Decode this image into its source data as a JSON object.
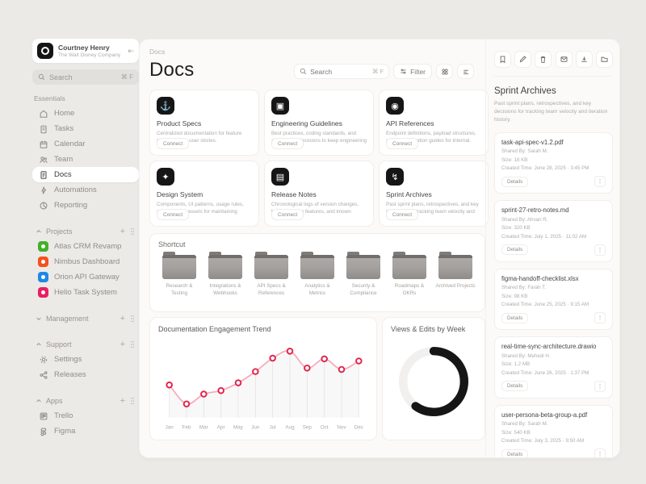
{
  "colors": {
    "page_bg": "#ECEAE7",
    "panel_bg": "#FBFAF8",
    "line_color": "#F5ABBA",
    "marker_color": "#E0244C",
    "donut_fill": "#161616",
    "donut_track": "#F1F0EE"
  },
  "sidebar": {
    "user": {
      "name": "Courtney Henry",
      "company": "The Walt Disney Company",
      "collapse_glyph": "⇤"
    },
    "search": {
      "label": "Search",
      "shortcut": "⌘ F"
    },
    "essentials": {
      "label": "Essentials",
      "items": [
        {
          "icon": "home-icon",
          "label": "Home"
        },
        {
          "icon": "tasks-icon",
          "label": "Tasks"
        },
        {
          "icon": "calendar-icon",
          "label": "Calendar"
        },
        {
          "icon": "team-icon",
          "label": "Team"
        },
        {
          "icon": "docs-icon",
          "label": "Docs",
          "active": true
        },
        {
          "icon": "automations-icon",
          "label": "Automations"
        },
        {
          "icon": "reporting-icon",
          "label": "Reporting"
        }
      ]
    },
    "projects": {
      "label": "Projects",
      "items": [
        {
          "label": "Atlas CRM Revamp",
          "color": "#43B02A"
        },
        {
          "label": "Nimbus Dashboard",
          "color": "#F4511E"
        },
        {
          "label": "Orion API Gateway",
          "color": "#1E88E5"
        },
        {
          "label": "Helio Task System",
          "color": "#E91E63"
        }
      ]
    },
    "management": {
      "label": "Management"
    },
    "support": {
      "label": "Support",
      "items": [
        {
          "icon": "settings-icon",
          "label": "Settings"
        },
        {
          "icon": "releases-icon",
          "label": "Releases"
        }
      ]
    },
    "apps": {
      "label": "Apps",
      "items": [
        {
          "icon": "trello-icon",
          "label": "Trello"
        },
        {
          "icon": "figma-icon",
          "label": "Figma"
        }
      ]
    }
  },
  "header": {
    "breadcrumb": "Docs",
    "title": "Docs",
    "search_placeholder": "Search",
    "search_shortcut": "⌘ F",
    "filter_label": "Filter"
  },
  "cards": [
    {
      "icon": "anchor-icon",
      "glyph": "⚓",
      "title": "Product Specs",
      "description": "Centralized documentation for feature requirements, user stories.",
      "button": "Connect"
    },
    {
      "icon": "framed-box-icon",
      "glyph": "▣",
      "title": "Engineering Guidelines",
      "description": "Best practices, coding standards, and architecture decisions to keep engineering consistent.",
      "button": "Connect"
    },
    {
      "icon": "target-icon",
      "glyph": "◉",
      "title": "API References",
      "description": "Endpoint definitions, payload structures, and authentication guides for internal.",
      "button": "Connect"
    },
    {
      "icon": "spark-icon",
      "glyph": "✦",
      "title": "Design System",
      "description": "Components, UI patterns, usage rules, and branding assets for maintaining visual.",
      "button": "Connect"
    },
    {
      "icon": "notes-icon",
      "glyph": "▤",
      "title": "Release Notes",
      "description": "Chronological logs of version changes, bug fixes, new features, and known issues.",
      "button": "Connect"
    },
    {
      "icon": "bolt-icon",
      "glyph": "↯",
      "title": "Sprint Archives",
      "description": "Past sprint plans, retrospectives, and key decisions for tracking team velocity and iteration history.",
      "button": "Connect"
    }
  ],
  "shortcut": {
    "title": "Shortcut",
    "folders": [
      "Research & Testing",
      "Integrations & Webhooks",
      "API Specs & References",
      "Analytics & Metrics",
      "Security & Compliance",
      "Roadmaps & OKRs",
      "Archived Projects"
    ]
  },
  "chart_data": [
    {
      "type": "line",
      "title": "Documentation Engagement Trend",
      "categories": [
        "Jan",
        "Feb",
        "Mar",
        "Apr",
        "May",
        "Jun",
        "Jul",
        "Aug",
        "Sep",
        "Oct",
        "Nov",
        "Dec"
      ],
      "values": [
        42,
        15,
        29,
        34,
        45,
        61,
        80,
        90,
        66,
        79,
        64,
        76
      ],
      "ylim": [
        0,
        100
      ],
      "xlabel": "",
      "ylabel": "",
      "legend": false,
      "grid": "faint vertical drop-lines under each point",
      "line_color": "#F5ABBA",
      "marker_color": "#E0244C"
    },
    {
      "type": "donut",
      "title": "Views & Edits by Week",
      "segments": [
        {
          "name": "completed",
          "value": 60,
          "color": "#161616"
        },
        {
          "name": "remaining",
          "value": 40,
          "color": "#F1F0EE"
        }
      ],
      "legend": false
    }
  ],
  "right_panel": {
    "toolbar_icons": [
      "bookmark-icon",
      "edit-icon",
      "trash-icon",
      "mail-icon",
      "download-icon",
      "folder-icon"
    ],
    "title": "Sprint Archives",
    "description": "Past sprint plans, retrospectives, and key decisions for tracking team velocity and iteration history.",
    "labels": {
      "shared_by": "Shared By:",
      "size": "Size:",
      "created": "Created Time:",
      "details": "Details",
      "kebab_glyph": "⋮"
    },
    "files": [
      {
        "name": "task-api-spec-v1.2.pdf",
        "shared_by": "Sarah M.",
        "size": "18 KB",
        "created": "June 28, 2025 · 3:45 PM"
      },
      {
        "name": "sprint-27-retro-notes.md",
        "shared_by": "Ahsan R.",
        "size": "320 KB",
        "created": "July 1, 2025 · 11:02 AM"
      },
      {
        "name": "figma-handoff-checklist.xlsx",
        "shared_by": "Farah T.",
        "size": "98 KB",
        "created": "June 25, 2025 · 9:15 AM"
      },
      {
        "name": "real-time-sync-architecture.drawio",
        "shared_by": "Mehedi H.",
        "size": "1.2 MB",
        "created": "June 26, 2025 · 1:37 PM"
      },
      {
        "name": "user-persona-beta-group-a.pdf",
        "shared_by": "Sarah M.",
        "size": "540 KB",
        "created": "July 3, 2025 · 9:50 AM"
      }
    ]
  }
}
